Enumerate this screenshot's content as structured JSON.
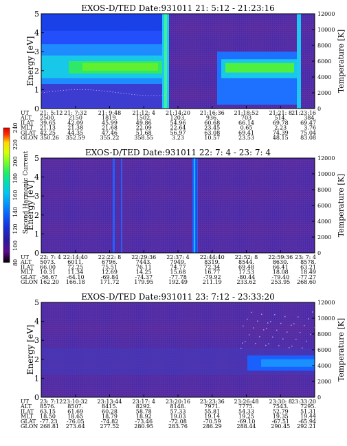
{
  "chart_data": [
    {
      "type": "heatmap",
      "title": "EXOS-D/TED   Date:931011  21: 5:12 - 21:23:16",
      "ylabel": "Energy [eV]",
      "y2label": "Temperature [K]",
      "ylim": [
        0,
        5
      ],
      "y2lim": [
        0,
        12000
      ],
      "yticks": [
        "0",
        "1",
        "2",
        "3",
        "4",
        "5"
      ],
      "y2ticks": [
        "0",
        "2000",
        "4000",
        "6000",
        "8000",
        "10000",
        "12000"
      ],
      "orbit_rows": [
        "UT",
        "ALT",
        "ILAT",
        "MLT",
        "GLAT",
        "GLON"
      ],
      "orbit_cols": [
        [
          "21: 5:12",
          "2500.",
          "39.65",
          "21.13",
          "42.25",
          "350.26"
        ],
        [
          "21: 7:32",
          "2150",
          "42.09",
          "21.38",
          "44.35",
          "352.59"
        ],
        [
          "21: 9:48",
          "1819.",
          "45.99",
          "21.68",
          "47.46",
          "355.22"
        ],
        [
          "21:12: 4",
          "1502.",
          "49.86",
          "22.09",
          "51.68",
          "358.55"
        ],
        [
          "21:14:20",
          "1203.",
          "54.96",
          "22.64",
          "56.97",
          "3.23"
        ],
        [
          "21:16:36",
          "936.",
          "60.68",
          "23.45",
          "63.08",
          "10.57"
        ],
        [
          "21:18:52",
          "703",
          "66.14",
          "0.65",
          "69.41",
          "23.53"
        ],
        [
          "21:21: 8",
          "514.",
          "69.78",
          "2.23",
          "74.39",
          "48.15"
        ],
        [
          "21:23:16",
          "384.",
          "69.47",
          "3.76",
          "75.04",
          "83.08"
        ]
      ]
    },
    {
      "type": "heatmap",
      "title": "EXOS-D/TED   Date:931011  22: 7: 4 - 23: 7: 4",
      "ylabel": "Energy [eV]",
      "y2label": "Temperature [K]",
      "ylim": [
        0,
        5
      ],
      "y2lim": [
        0,
        12000
      ],
      "yticks": [
        "0",
        "1",
        "2",
        "3",
        "4",
        "5"
      ],
      "y2ticks": [
        "0",
        "2000",
        "4000",
        "6000",
        "8000",
        "10000",
        "12000"
      ],
      "orbit_rows": [
        "UT",
        "ALT",
        "ILAT",
        "MLT",
        "GLAT",
        "GLON"
      ],
      "orbit_cols": [
        [
          "22: 7: 4",
          "5073.",
          "66.00",
          "10.31",
          "-56.67",
          "162.20"
        ],
        [
          "22:14:40",
          "6011.",
          "72.25",
          "11.34",
          "-64.10",
          "166.18"
        ],
        [
          "22:22: 8",
          "6796.",
          "75.51",
          "12.69",
          "-69.84",
          "171.72"
        ],
        [
          "22:29:36",
          "7443.",
          "76.11",
          "14.25",
          "-74.37",
          "179.95"
        ],
        [
          "22:37: 4",
          "7949.",
          "74.77",
          "15.68",
          "-77.78",
          "192.49"
        ],
        [
          "22:44:40",
          "8319.",
          "72.34",
          "16.77",
          "-79.92",
          "211.19"
        ],
        [
          "22:52: 8",
          "8544.",
          "69.48",
          "17.53",
          "-80.44",
          "233.62"
        ],
        [
          "22:59:36",
          "8630.",
          "66.41",
          "18.08",
          "-79.40",
          "253.95"
        ],
        [
          "23: 7: 4",
          "8578.",
          "63.21",
          "18.49",
          "-77.27",
          "268.60"
        ]
      ]
    },
    {
      "type": "heatmap",
      "title": "EXOS-D/TED   Date:931011  23: 7:12 - 23:33:20",
      "ylabel": "Energy [eV]",
      "y2label": "Temperature [K]",
      "ylim": [
        0,
        5
      ],
      "y2lim": [
        0,
        12000
      ],
      "yticks": [
        "0",
        "1",
        "2",
        "3",
        "4",
        "5"
      ],
      "y2ticks": [
        "0",
        "2000",
        "4000",
        "6000",
        "8000",
        "10000",
        "12000"
      ],
      "orbit_rows": [
        "UT",
        "ALT",
        "ILAT",
        "MLT",
        "GLAT",
        "GLON"
      ],
      "orbit_cols": [
        [
          "23: 7:12",
          "8576.",
          "63.15",
          "18.50",
          "-77.23",
          "268.81"
        ],
        [
          "23:10:32",
          "8507.",
          "61.69",
          "18.65",
          "-76.05",
          "273.64"
        ],
        [
          "23:13:44",
          "8415.",
          "60.28",
          "18.79",
          "-74.82",
          "277.52"
        ],
        [
          "23:17: 4",
          "8292.",
          "58.78",
          "18.92",
          "-73.46",
          "280.95"
        ],
        [
          "23:20:16",
          "8148.",
          "57.33",
          "19.03",
          "-72.08",
          "283.76"
        ],
        [
          "23:23:36",
          "7971.",
          "55.81",
          "19.14",
          "-70.59",
          "286.29"
        ],
        [
          "23:26:48",
          "7775.",
          "54.33",
          "19.25",
          "-69.10",
          "288.44"
        ],
        [
          "23:30: 8",
          "7543.",
          "52.79",
          "19.35",
          "-67.51",
          "290.45"
        ],
        [
          "23:33:20",
          "7295.",
          "51.31",
          "19.44",
          "-65.94",
          "292.21"
        ]
      ]
    }
  ],
  "colorbar": {
    "label": "Second Harmonic Current",
    "ticks": [
      "80",
      "100",
      "120",
      "140",
      "160",
      "180",
      "200",
      "220",
      "240"
    ],
    "colors": [
      "#000000",
      "#5a0a8c",
      "#2a1aa0",
      "#1830d8",
      "#0a5cff",
      "#0099ff",
      "#00c8f0",
      "#00e0b0",
      "#20f060",
      "#80ff20",
      "#d8ff00",
      "#ffd800",
      "#ff9000",
      "#ff3000",
      "#e00000"
    ]
  },
  "colors": {
    "background": "#5530a0",
    "band": "#1a60ff",
    "band_center": "#30f020",
    "low": "#2040ff"
  }
}
